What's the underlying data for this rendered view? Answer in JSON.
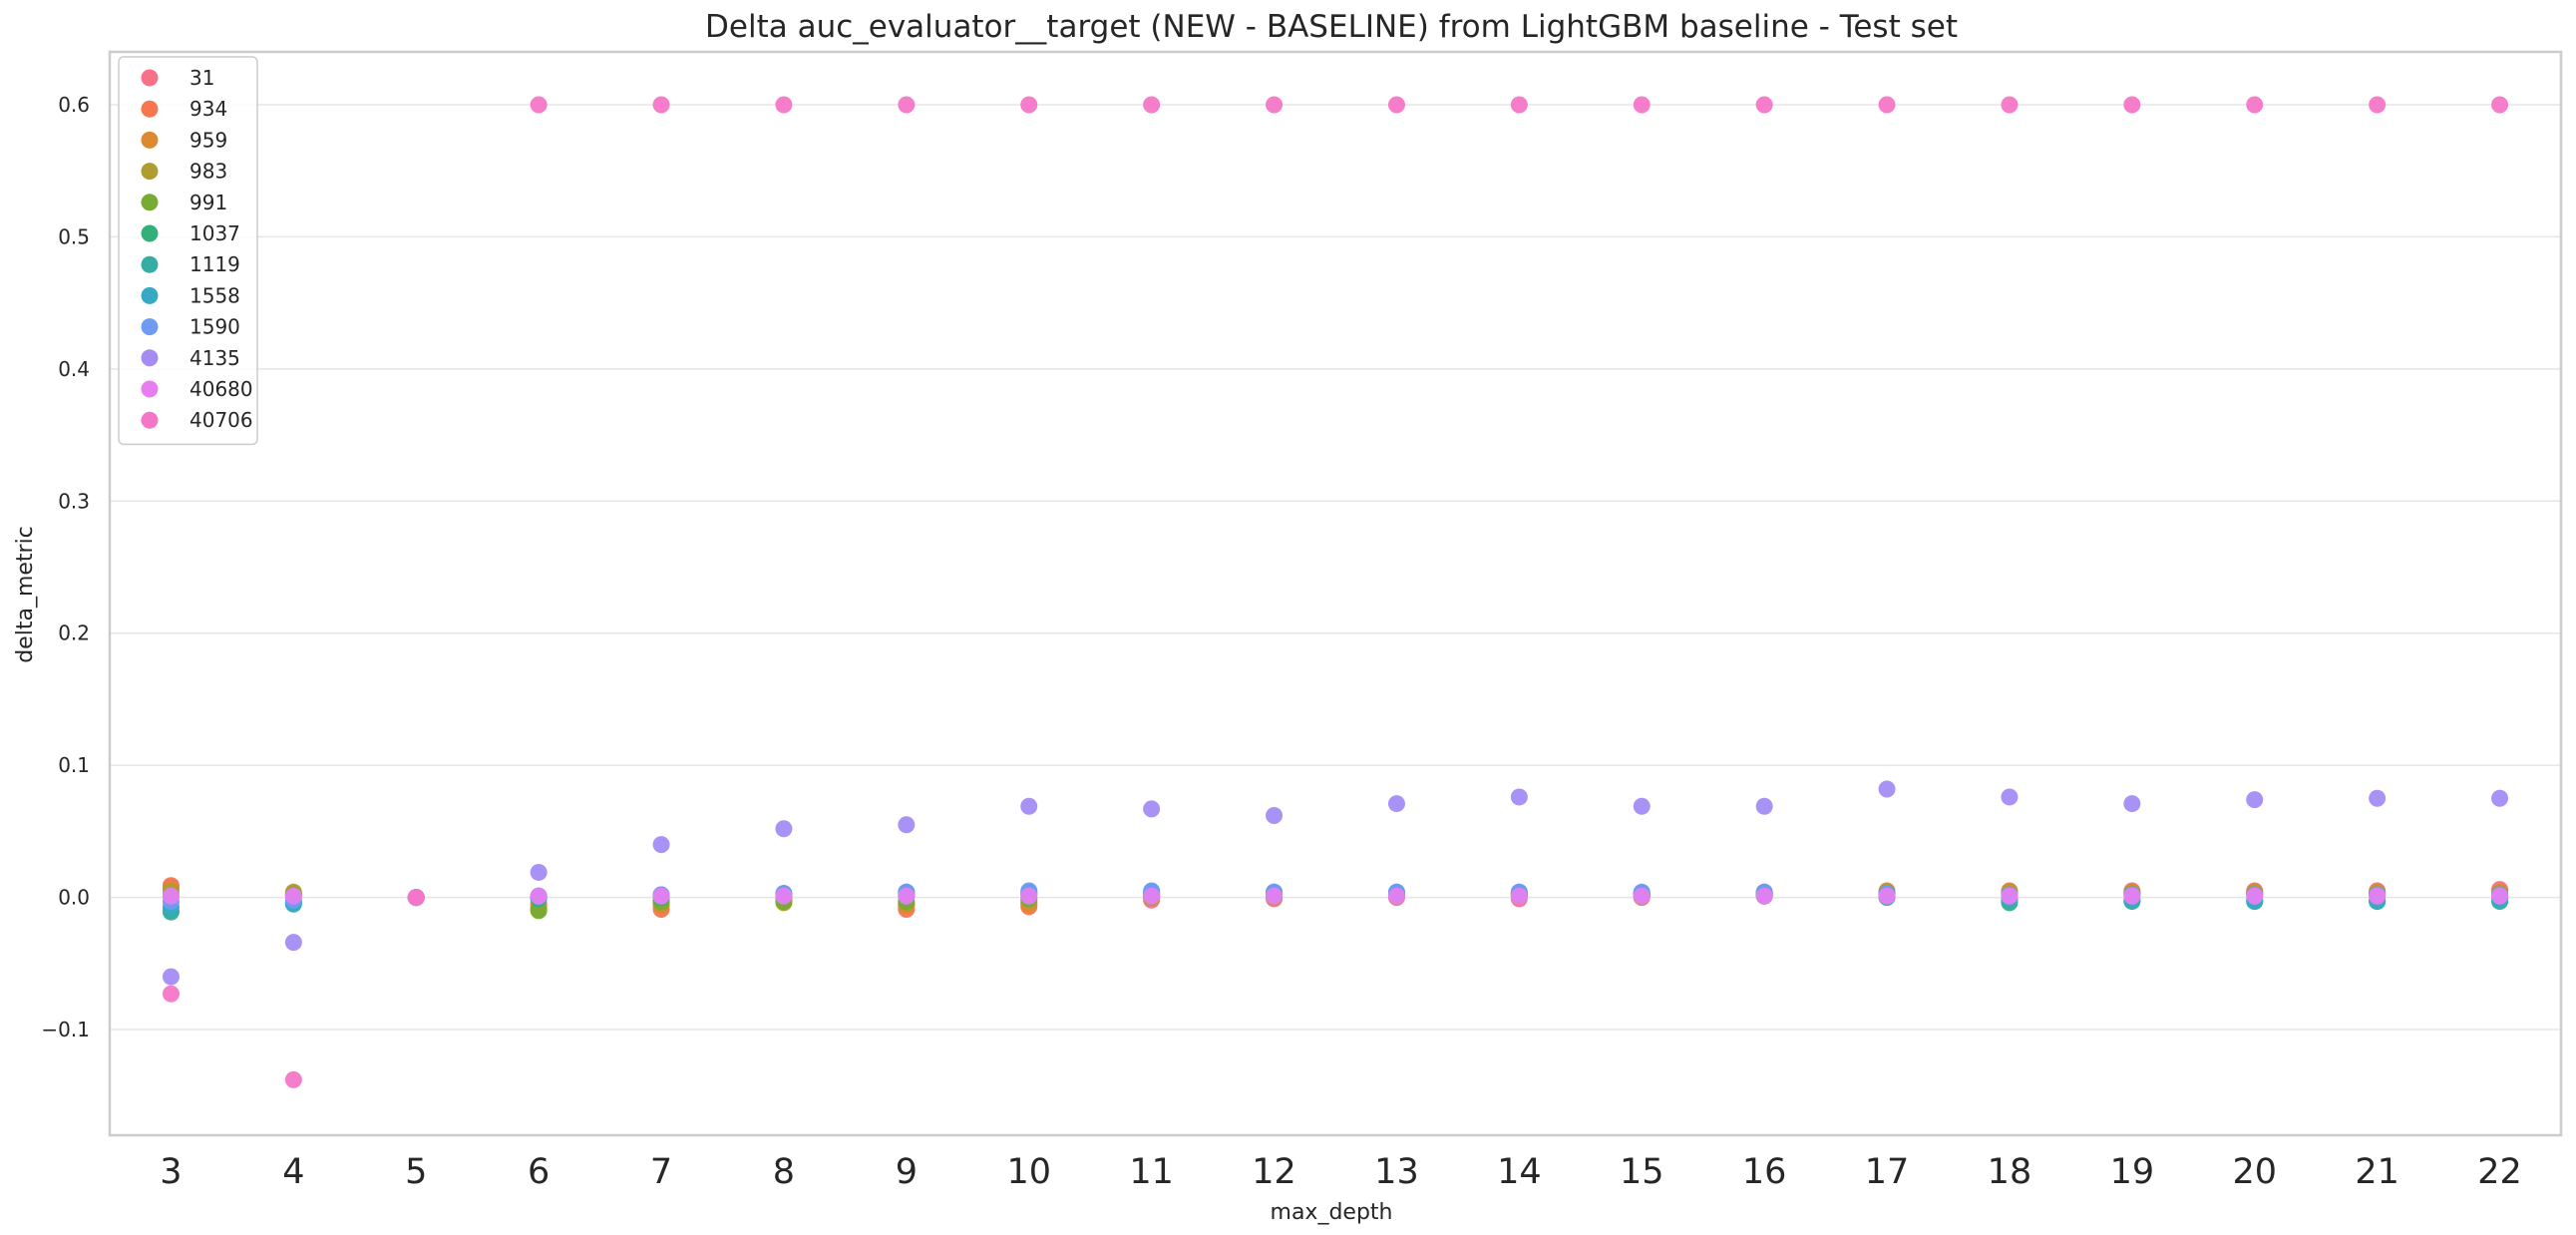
{
  "chart_data": {
    "type": "scatter",
    "title": "Delta auc_evaluator__target (NEW - BASELINE) from LightGBM baseline - Test set",
    "xlabel": "max_depth",
    "ylabel": "delta_metric",
    "categories": [
      "3",
      "4",
      "5",
      "6",
      "7",
      "8",
      "9",
      "10",
      "11",
      "12",
      "13",
      "14",
      "15",
      "16",
      "17",
      "18",
      "19",
      "20",
      "21",
      "22"
    ],
    "ylim": [
      -0.18,
      0.64
    ],
    "yticks": [
      -0.1,
      0.0,
      0.1,
      0.2,
      0.3,
      0.4,
      0.5,
      0.6
    ],
    "ytick_labels": [
      "−0.1",
      "0.0",
      "0.1",
      "0.2",
      "0.3",
      "0.4",
      "0.5",
      "0.6"
    ],
    "grid": true,
    "legend_position": "top-left",
    "series": [
      {
        "name": "31",
        "color": "#f77189",
        "values": [
          0.008,
          0.002,
          0.0,
          0.0,
          -0.002,
          0.0,
          -0.005,
          -0.004,
          -0.002,
          -0.001,
          0.0,
          -0.001,
          0.001,
          0.002,
          0.004,
          0.004,
          0.005,
          0.005,
          0.005,
          0.006
        ]
      },
      {
        "name": "934",
        "color": "#f7754f",
        "values": [
          0.009,
          0.001,
          0.0,
          -0.005,
          -0.009,
          -0.003,
          -0.009,
          -0.007,
          0.001,
          0.0,
          0.001,
          0.001,
          0.0,
          0.001,
          0.003,
          0.003,
          0.004,
          0.004,
          0.004,
          0.004
        ]
      },
      {
        "name": "959",
        "color": "#dc8932",
        "values": [
          0.006,
          0.003,
          0.0,
          -0.007,
          -0.006,
          -0.002,
          -0.006,
          -0.005,
          0.0,
          0.0,
          0.001,
          0.002,
          0.002,
          0.003,
          0.005,
          0.005,
          0.004,
          0.004,
          0.004,
          0.004
        ]
      },
      {
        "name": "983",
        "color": "#ae9d31",
        "values": [
          0.004,
          0.004,
          0.0,
          -0.009,
          -0.004,
          -0.004,
          -0.004,
          -0.002,
          0.0,
          0.001,
          0.001,
          0.003,
          0.003,
          0.004,
          0.004,
          0.003,
          0.003,
          0.003,
          0.003,
          0.003
        ]
      },
      {
        "name": "991",
        "color": "#77ab31",
        "values": [
          0.001,
          0.002,
          0.0,
          -0.01,
          -0.003,
          -0.003,
          -0.003,
          -0.001,
          0.001,
          0.001,
          0.001,
          0.003,
          0.003,
          0.003,
          0.003,
          0.002,
          0.002,
          0.002,
          0.002,
          0.002
        ]
      },
      {
        "name": "1037",
        "color": "#33b07a",
        "values": [
          -0.011,
          -0.004,
          0.0,
          -0.001,
          0.0,
          0.001,
          0.001,
          0.002,
          0.002,
          0.002,
          0.002,
          0.002,
          0.001,
          0.001,
          0.001,
          -0.004,
          -0.003,
          -0.003,
          -0.003,
          -0.003
        ]
      },
      {
        "name": "1119",
        "color": "#36ada4",
        "values": [
          -0.01,
          -0.005,
          0.0,
          0.0,
          0.001,
          0.002,
          0.002,
          0.003,
          0.003,
          0.003,
          0.003,
          0.003,
          0.002,
          0.002,
          0.0,
          -0.002,
          -0.002,
          -0.002,
          -0.002,
          -0.002
        ]
      },
      {
        "name": "1558",
        "color": "#38a9c5",
        "values": [
          -0.007,
          -0.004,
          0.0,
          0.001,
          0.002,
          0.003,
          0.004,
          0.004,
          0.004,
          0.004,
          0.004,
          0.004,
          0.003,
          0.003,
          0.001,
          -0.001,
          -0.002,
          -0.003,
          -0.003,
          -0.002
        ]
      },
      {
        "name": "1590",
        "color": "#6e9bf4",
        "values": [
          -0.003,
          -0.002,
          0.0,
          0.001,
          0.002,
          0.003,
          0.004,
          0.005,
          0.005,
          0.004,
          0.004,
          0.004,
          0.004,
          0.004,
          0.003,
          0.002,
          0.002,
          0.002,
          0.002,
          0.002
        ]
      },
      {
        "name": "4135",
        "color": "#a48cf4",
        "values": [
          -0.06,
          -0.034,
          0.0,
          0.019,
          0.04,
          0.052,
          0.055,
          0.069,
          0.067,
          0.062,
          0.071,
          0.076,
          0.069,
          0.069,
          0.082,
          0.076,
          0.071,
          0.074,
          0.075,
          0.075
        ]
      },
      {
        "name": "40680",
        "color": "#e67ef0",
        "values": [
          0.001,
          0.001,
          0.0,
          0.001,
          0.001,
          0.001,
          0.001,
          0.001,
          0.001,
          0.001,
          0.001,
          0.001,
          0.001,
          0.001,
          0.001,
          0.001,
          0.001,
          0.001,
          0.001,
          0.001
        ]
      },
      {
        "name": "40706",
        "color": "#f476c7",
        "values": [
          -0.073,
          -0.138,
          0.0,
          0.6,
          0.6,
          0.6,
          0.6,
          0.6,
          0.6,
          0.6,
          0.6,
          0.6,
          0.6,
          0.6,
          0.6,
          0.6,
          0.6,
          0.6,
          0.6,
          0.6
        ]
      }
    ]
  }
}
